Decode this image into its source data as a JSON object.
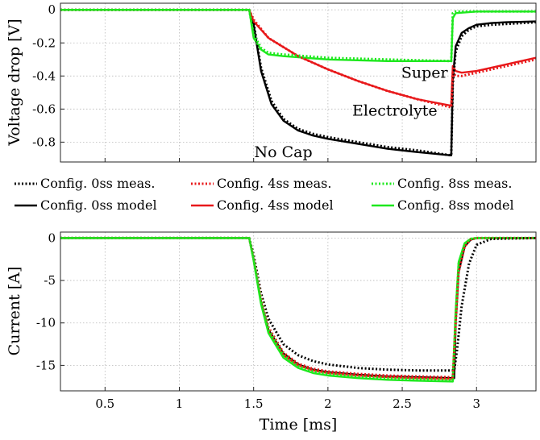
{
  "colors": {
    "config0": "#000000",
    "config4": "#e8191b",
    "config8": "#1ee81e"
  },
  "chart_data": [
    {
      "type": "line",
      "xlabel": "",
      "ylabel": "Voltage drop [V]",
      "xlim": [
        0.2,
        3.4
      ],
      "ylim": [
        -0.92,
        0.04
      ],
      "xticks": [
        0.5,
        1,
        1.5,
        2,
        2.5,
        3
      ],
      "xtick_labels": [],
      "yticks": [
        0,
        -0.2,
        -0.4,
        -0.6,
        -0.8
      ],
      "ytick_labels": [
        "0",
        "-0.2",
        "-0.4",
        "-0.6",
        "-0.8"
      ],
      "grid": true,
      "annotations": [
        {
          "text": "Super",
          "x": 2.65,
          "y": -0.41
        },
        {
          "text": "Electrolyte",
          "x": 2.45,
          "y": -0.64
        },
        {
          "text": "No Cap",
          "x": 1.7,
          "y": -0.89
        }
      ],
      "series": [
        {
          "name": "Config. 0ss meas.",
          "color_key": "config0",
          "dash": true,
          "x": [
            0.2,
            1.47,
            1.5,
            1.55,
            1.62,
            1.7,
            1.8,
            1.9,
            2.0,
            2.2,
            2.4,
            2.6,
            2.83,
            2.84,
            2.86,
            2.9,
            2.95,
            3.0,
            3.1,
            3.2,
            3.4
          ],
          "y": [
            0,
            0,
            -0.08,
            -0.35,
            -0.55,
            -0.66,
            -0.72,
            -0.75,
            -0.77,
            -0.8,
            -0.83,
            -0.85,
            -0.88,
            -0.45,
            -0.25,
            -0.16,
            -0.12,
            -0.1,
            -0.09,
            -0.085,
            -0.075
          ]
        },
        {
          "name": "Config. 0ss model",
          "color_key": "config0",
          "dash": false,
          "x": [
            0.2,
            1.47,
            1.5,
            1.55,
            1.62,
            1.7,
            1.8,
            1.9,
            2.0,
            2.2,
            2.4,
            2.6,
            2.83,
            2.84,
            2.86,
            2.9,
            2.95,
            3.0,
            3.1,
            3.2,
            3.4
          ],
          "y": [
            0,
            0,
            -0.09,
            -0.37,
            -0.57,
            -0.67,
            -0.73,
            -0.76,
            -0.78,
            -0.81,
            -0.84,
            -0.86,
            -0.88,
            -0.42,
            -0.22,
            -0.14,
            -0.11,
            -0.09,
            -0.08,
            -0.075,
            -0.07
          ]
        },
        {
          "name": "Config. 4ss meas.",
          "color_key": "config4",
          "dash": true,
          "x": [
            0.2,
            1.47,
            1.5,
            1.6,
            1.8,
            2.0,
            2.2,
            2.4,
            2.6,
            2.83,
            2.84,
            2.86,
            2.9,
            3.0,
            3.2,
            3.4
          ],
          "y": [
            0,
            0,
            -0.06,
            -0.17,
            -0.28,
            -0.36,
            -0.43,
            -0.49,
            -0.54,
            -0.59,
            -0.38,
            -0.4,
            -0.4,
            -0.38,
            -0.34,
            -0.3
          ]
        },
        {
          "name": "Config. 4ss model",
          "color_key": "config4",
          "dash": false,
          "x": [
            0.2,
            1.47,
            1.5,
            1.6,
            1.8,
            2.0,
            2.2,
            2.4,
            2.6,
            2.83,
            2.84,
            2.86,
            2.9,
            3.0,
            3.2,
            3.4
          ],
          "y": [
            0,
            0,
            -0.07,
            -0.17,
            -0.28,
            -0.36,
            -0.43,
            -0.49,
            -0.54,
            -0.58,
            -0.34,
            -0.37,
            -0.38,
            -0.37,
            -0.33,
            -0.29
          ]
        },
        {
          "name": "Config. 8ss meas.",
          "color_key": "config8",
          "dash": true,
          "x": [
            0.2,
            1.47,
            1.5,
            1.55,
            1.6,
            1.7,
            2.0,
            2.4,
            2.83,
            2.84,
            2.86,
            3.0,
            3.2,
            3.4
          ],
          "y": [
            0,
            0,
            -0.15,
            -0.23,
            -0.26,
            -0.27,
            -0.29,
            -0.3,
            -0.31,
            -0.02,
            -0.01,
            -0.01,
            -0.01,
            -0.01
          ]
        },
        {
          "name": "Config. 8ss model",
          "color_key": "config8",
          "dash": false,
          "x": [
            0.2,
            1.47,
            1.5,
            1.55,
            1.6,
            1.7,
            2.0,
            2.4,
            2.83,
            2.84,
            2.86,
            3.0,
            3.2,
            3.4
          ],
          "y": [
            0,
            0,
            -0.17,
            -0.24,
            -0.27,
            -0.28,
            -0.3,
            -0.31,
            -0.31,
            -0.05,
            -0.02,
            -0.01,
            -0.01,
            -0.01
          ]
        }
      ]
    },
    {
      "type": "line",
      "xlabel": "Time [ms]",
      "ylabel": "Current [A]",
      "xlim": [
        0.2,
        3.4
      ],
      "ylim": [
        -18,
        0.7
      ],
      "xticks": [
        0.5,
        1,
        1.5,
        2,
        2.5,
        3
      ],
      "xtick_labels": [
        "0.5",
        "1",
        "1.5",
        "2",
        "2.5",
        "3"
      ],
      "yticks": [
        0,
        -5,
        -10,
        -15
      ],
      "ytick_labels": [
        "0",
        "-5",
        "-10",
        "-15"
      ],
      "grid": true,
      "series": [
        {
          "name": "Config. 0ss meas.",
          "color_key": "config0",
          "dash": true,
          "x": [
            0.2,
            1.47,
            1.5,
            1.55,
            1.6,
            1.7,
            1.8,
            1.9,
            2.0,
            2.2,
            2.4,
            2.6,
            2.85,
            2.87,
            2.9,
            2.95,
            3.0,
            3.1,
            3.4
          ],
          "y": [
            0,
            0,
            -2,
            -6.5,
            -9.5,
            -12.5,
            -13.8,
            -14.5,
            -14.9,
            -15.3,
            -15.5,
            -15.6,
            -15.6,
            -13,
            -8,
            -3,
            -0.8,
            -0.1,
            0
          ]
        },
        {
          "name": "Config. 0ss model",
          "color_key": "config0",
          "dash": false,
          "x": [
            0.2,
            1.47,
            1.5,
            1.55,
            1.6,
            1.7,
            1.8,
            1.9,
            2.0,
            2.2,
            2.4,
            2.6,
            2.85,
            2.86,
            2.88,
            2.92,
            2.96,
            3.0,
            3.4
          ],
          "y": [
            0,
            0,
            -2.5,
            -7.5,
            -10.8,
            -13.6,
            -14.9,
            -15.5,
            -15.8,
            -16.1,
            -16.3,
            -16.4,
            -16.5,
            -10,
            -4,
            -1,
            -0.2,
            0,
            0
          ]
        },
        {
          "name": "Config. 4ss meas.",
          "color_key": "config4",
          "dash": true,
          "x": [
            0.2,
            1.47,
            1.5,
            1.55,
            1.6,
            1.7,
            1.8,
            1.9,
            2.0,
            2.2,
            2.4,
            2.6,
            2.84,
            2.86,
            2.88,
            2.92,
            2.96,
            3.0,
            3.4
          ],
          "y": [
            0,
            0,
            -2.3,
            -7,
            -10.5,
            -13.5,
            -14.8,
            -15.4,
            -15.7,
            -16.0,
            -16.2,
            -16.3,
            -16.4,
            -10,
            -4,
            -1,
            -0.2,
            0,
            0
          ]
        },
        {
          "name": "Config. 4ss model",
          "color_key": "config4",
          "dash": false,
          "x": [
            0.2,
            1.47,
            1.5,
            1.55,
            1.6,
            1.7,
            1.8,
            1.9,
            2.0,
            2.2,
            2.4,
            2.6,
            2.84,
            2.86,
            2.88,
            2.92,
            2.96,
            3.0,
            3.4
          ],
          "y": [
            0,
            0,
            -2.6,
            -7.6,
            -11,
            -13.8,
            -15.0,
            -15.6,
            -15.9,
            -16.2,
            -16.4,
            -16.5,
            -16.6,
            -9,
            -3,
            -0.7,
            -0.1,
            0,
            0
          ]
        },
        {
          "name": "Config. 8ss meas.",
          "color_key": "config8",
          "dash": true,
          "x": [
            0.2,
            1.47,
            1.5,
            1.55,
            1.6,
            1.7,
            1.8,
            1.9,
            2.0,
            2.2,
            2.4,
            2.6,
            2.84,
            2.86,
            2.88,
            2.92,
            2.96,
            3.0,
            3.4
          ],
          "y": [
            0,
            0,
            -2.4,
            -7.3,
            -10.8,
            -13.8,
            -15.1,
            -15.7,
            -16.0,
            -16.3,
            -16.5,
            -16.6,
            -16.7,
            -9,
            -3,
            -0.7,
            -0.1,
            0,
            0
          ]
        },
        {
          "name": "Config. 8ss model",
          "color_key": "config8",
          "dash": false,
          "x": [
            0.2,
            1.47,
            1.5,
            1.55,
            1.6,
            1.7,
            1.8,
            1.9,
            2.0,
            2.2,
            2.4,
            2.6,
            2.84,
            2.86,
            2.88,
            2.92,
            2.96,
            3.0,
            3.4
          ],
          "y": [
            0,
            0,
            -2.7,
            -7.8,
            -11.2,
            -14.1,
            -15.3,
            -15.9,
            -16.2,
            -16.5,
            -16.7,
            -16.8,
            -16.9,
            -8.5,
            -2.8,
            -0.6,
            -0.1,
            0,
            0
          ]
        }
      ]
    }
  ]
}
